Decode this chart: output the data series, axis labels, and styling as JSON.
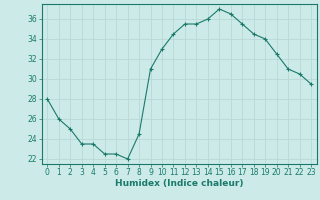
{
  "x": [
    0,
    1,
    2,
    3,
    4,
    5,
    6,
    7,
    8,
    9,
    10,
    11,
    12,
    13,
    14,
    15,
    16,
    17,
    18,
    19,
    20,
    21,
    22,
    23
  ],
  "y": [
    28,
    26,
    25,
    23.5,
    23.5,
    22.5,
    22.5,
    22,
    24.5,
    31,
    33,
    34.5,
    35.5,
    35.5,
    36,
    37,
    36.5,
    35.5,
    34.5,
    34,
    32.5,
    31,
    30.5,
    29.5
  ],
  "line_color": "#1a7a6a",
  "marker": "+",
  "bg_color": "#cceae8",
  "grid_color": "#b8d8d6",
  "axis_color": "#1a7a6a",
  "tick_color": "#1a7a6a",
  "xlabel": "Humidex (Indice chaleur)",
  "xlim": [
    -0.5,
    23.5
  ],
  "ylim": [
    21.5,
    37.5
  ],
  "yticks": [
    22,
    24,
    26,
    28,
    30,
    32,
    34,
    36
  ],
  "xticks": [
    0,
    1,
    2,
    3,
    4,
    5,
    6,
    7,
    8,
    9,
    10,
    11,
    12,
    13,
    14,
    15,
    16,
    17,
    18,
    19,
    20,
    21,
    22,
    23
  ],
  "tick_fontsize": 5.5,
  "xlabel_fontsize": 6.5,
  "marker_size": 3,
  "linewidth": 0.8
}
